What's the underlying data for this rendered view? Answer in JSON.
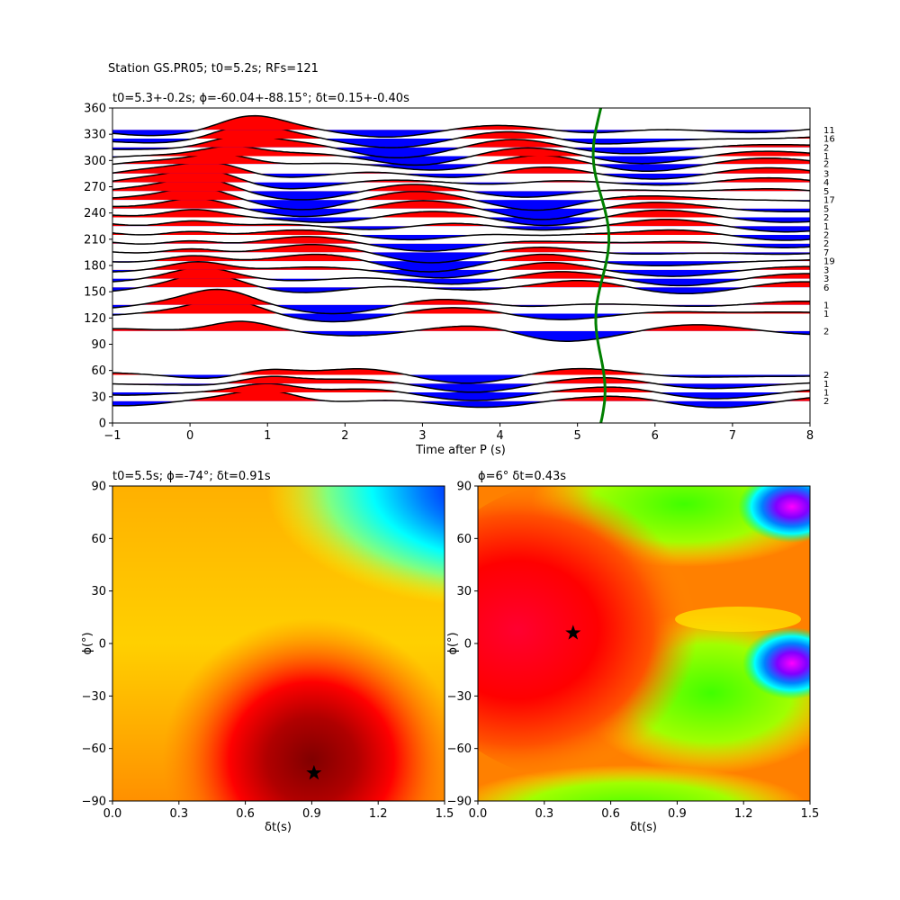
{
  "figure": {
    "suptitle": "Station GS.PR05; t0=5.2s; RFs=121"
  },
  "chart_data": [
    {
      "type": "line",
      "title": "t0=5.3+-0.2s; ϕ=-60.04+-88.15°; δt=0.15+-0.40s",
      "xlabel": "Time after P (s)",
      "ylabel": "",
      "xlim": [
        -1,
        8
      ],
      "ylim": [
        0,
        360
      ],
      "xticks": [
        "−1",
        "0",
        "1",
        "2",
        "3",
        "4",
        "5",
        "6",
        "7",
        "8"
      ],
      "yticks": [
        "0",
        "30",
        "60",
        "90",
        "120",
        "150",
        "180",
        "210",
        "240",
        "270",
        "300",
        "330",
        "360"
      ],
      "fill_positive": "#ff0000",
      "fill_negative": "#0000ff",
      "baz_traces": [
        {
          "baz": 335,
          "count": "11"
        },
        {
          "baz": 325,
          "count": "16"
        },
        {
          "baz": 315,
          "count": "2"
        },
        {
          "baz": 305,
          "count": "1"
        },
        {
          "baz": 296,
          "count": "2"
        },
        {
          "baz": 285,
          "count": "3"
        },
        {
          "baz": 275,
          "count": "4"
        },
        {
          "baz": 265,
          "count": "5"
        },
        {
          "baz": 255,
          "count": "17"
        },
        {
          "baz": 245,
          "count": "5"
        },
        {
          "baz": 235,
          "count": "2"
        },
        {
          "baz": 225,
          "count": "1"
        },
        {
          "baz": 215,
          "count": "2"
        },
        {
          "baz": 205,
          "count": "2"
        },
        {
          "baz": 195,
          "count": "7"
        },
        {
          "baz": 185,
          "count": "19"
        },
        {
          "baz": 175,
          "count": "3"
        },
        {
          "baz": 165,
          "count": "3"
        },
        {
          "baz": 155,
          "count": "6"
        },
        {
          "baz": 135,
          "count": "1"
        },
        {
          "baz": 125,
          "count": "1"
        },
        {
          "baz": 105,
          "count": "2"
        },
        {
          "baz": 55,
          "count": "2"
        },
        {
          "baz": 45,
          "count": "1"
        },
        {
          "baz": 35,
          "count": "1"
        },
        {
          "baz": 25,
          "count": "2"
        }
      ],
      "t0_curve": {
        "color": "#008000",
        "mean_time": 5.3
      }
    },
    {
      "type": "heatmap",
      "title": "t0=5.5s; ϕ=-74°; δt=0.91s",
      "xlabel": "δt(s)",
      "ylabel": "ϕ(°)",
      "xlim": [
        0,
        1.5
      ],
      "ylim": [
        -90,
        90
      ],
      "xticks": [
        "0.0",
        "0.3",
        "0.6",
        "0.9",
        "1.2",
        "1.5"
      ],
      "yticks": [
        "−90",
        "−60",
        "−30",
        "0",
        "30",
        "60",
        "90"
      ],
      "colormap": "jet",
      "best": {
        "dt": 0.91,
        "phi": -74
      }
    },
    {
      "type": "heatmap",
      "title": "ϕ=6° δt=0.43s",
      "xlabel": "δt(s)",
      "ylabel": "ϕ(°)",
      "xlim": [
        0,
        1.5
      ],
      "ylim": [
        -90,
        90
      ],
      "xticks": [
        "0.0",
        "0.3",
        "0.6",
        "0.9",
        "1.2",
        "1.5"
      ],
      "yticks": [
        "−90",
        "−60",
        "−30",
        "0",
        "30",
        "60",
        "90"
      ],
      "colormap": "hsv",
      "best": {
        "dt": 0.43,
        "phi": 6
      }
    }
  ]
}
